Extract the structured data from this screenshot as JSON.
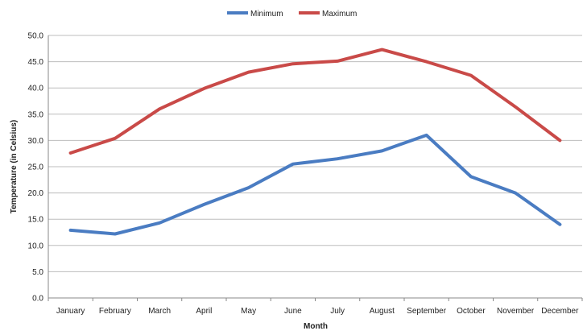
{
  "chart_data": {
    "type": "line",
    "title": "",
    "xlabel": "Month",
    "ylabel": "Temperature (in Celsius)",
    "ylim": [
      0,
      50
    ],
    "yticks": [
      0,
      5,
      10,
      15,
      20,
      25,
      30,
      35,
      40,
      45,
      50
    ],
    "ytick_labels": [
      "0.0",
      "5.0",
      "10.0",
      "15.0",
      "20.0",
      "25.0",
      "30.0",
      "35.0",
      "40.0",
      "45.0",
      "50.0"
    ],
    "grid": true,
    "legend_position": "top",
    "categories": [
      "January",
      "February",
      "March",
      "April",
      "May",
      "June",
      "July",
      "August",
      "September",
      "October",
      "November",
      "December"
    ],
    "series": [
      {
        "name": "Minimum",
        "color": "#4a7cc2",
        "values": [
          12.9,
          12.2,
          14.3,
          17.8,
          21.0,
          25.5,
          26.5,
          28.0,
          31.0,
          23.1,
          20.0,
          14.0
        ]
      },
      {
        "name": "Maximum",
        "color": "#c94a48",
        "values": [
          27.6,
          30.4,
          36.0,
          39.9,
          43.0,
          44.6,
          45.1,
          47.3,
          45.0,
          42.4,
          36.4,
          30.0
        ]
      }
    ]
  }
}
